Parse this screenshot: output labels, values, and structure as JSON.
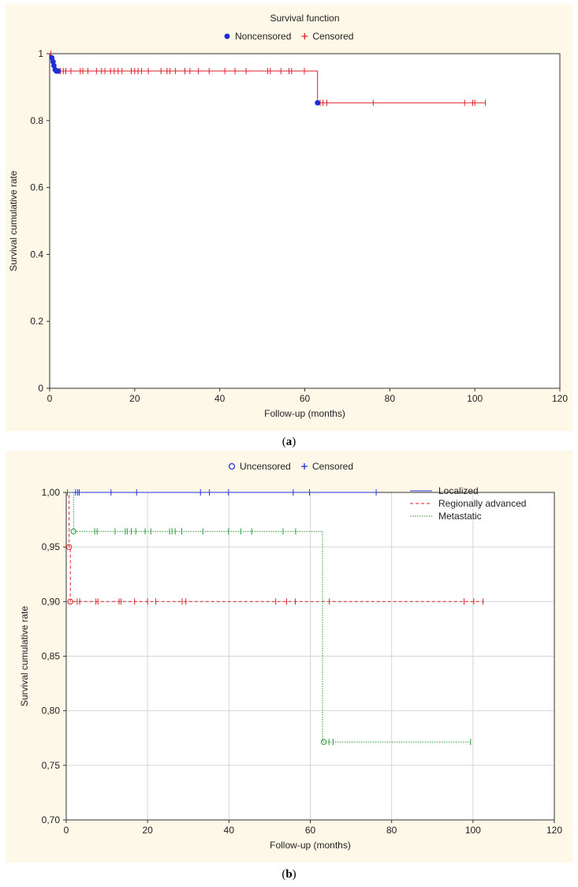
{
  "figure_labels": {
    "a": "a",
    "b": "b"
  },
  "chart_data": [
    {
      "type": "line",
      "title": "Survival function",
      "xlabel": "Follow-up (months)",
      "ylabel": "Survival cumulative rate",
      "xlim": [
        0,
        120
      ],
      "ylim": [
        0,
        1
      ],
      "x_ticks": [
        "0",
        "20",
        "40",
        "60",
        "80",
        "100",
        "120"
      ],
      "y_ticks": [
        "0",
        "0.2",
        "0.4",
        "0.6",
        "0.8",
        "1"
      ],
      "grid": false,
      "legend": {
        "placement": "top",
        "entries": [
          {
            "label": "Noncensored",
            "marker": "filled-circle",
            "color": "#1f2fd6"
          },
          {
            "label": "Censored",
            "marker": "plus",
            "color": "#e0202a"
          }
        ]
      },
      "series": [
        {
          "color": "#e0202a",
          "step": [
            [
              0,
              1.0
            ],
            [
              0.5,
              0.988
            ],
            [
              0.8,
              0.976
            ],
            [
              1.0,
              0.964
            ],
            [
              1.3,
              0.952
            ],
            [
              1.5,
              0.948
            ],
            [
              63.0,
              0.948
            ],
            [
              63.0,
              0.853
            ],
            [
              102.5,
              0.853
            ]
          ],
          "events": [
            [
              0.5,
              0.988
            ],
            [
              0.8,
              0.976
            ],
            [
              1.0,
              0.964
            ],
            [
              1.3,
              0.952
            ],
            [
              1.6,
              0.948
            ],
            [
              2.0,
              0.948
            ],
            [
              63.0,
              0.853
            ]
          ],
          "censored": [
            [
              0.3,
              1.0
            ],
            [
              2.5,
              0.948
            ],
            [
              3.2,
              0.948
            ],
            [
              3.8,
              0.948
            ],
            [
              5.0,
              0.948
            ],
            [
              7.2,
              0.948
            ],
            [
              7.8,
              0.948
            ],
            [
              9.0,
              0.948
            ],
            [
              11.0,
              0.948
            ],
            [
              12.2,
              0.948
            ],
            [
              13.0,
              0.948
            ],
            [
              14.3,
              0.948
            ],
            [
              15.2,
              0.948
            ],
            [
              16.1,
              0.948
            ],
            [
              17.0,
              0.948
            ],
            [
              19.2,
              0.948
            ],
            [
              20.0,
              0.948
            ],
            [
              20.8,
              0.948
            ],
            [
              21.6,
              0.948
            ],
            [
              23.2,
              0.948
            ],
            [
              26.2,
              0.948
            ],
            [
              27.6,
              0.948
            ],
            [
              28.3,
              0.948
            ],
            [
              29.6,
              0.948
            ],
            [
              31.8,
              0.948
            ],
            [
              33.0,
              0.948
            ],
            [
              35.0,
              0.948
            ],
            [
              37.5,
              0.948
            ],
            [
              41.2,
              0.948
            ],
            [
              43.6,
              0.948
            ],
            [
              46.2,
              0.948
            ],
            [
              51.3,
              0.948
            ],
            [
              51.9,
              0.948
            ],
            [
              54.4,
              0.948
            ],
            [
              56.3,
              0.948
            ],
            [
              56.9,
              0.948
            ],
            [
              59.9,
              0.948
            ],
            [
              63.6,
              0.853
            ],
            [
              64.3,
              0.853
            ],
            [
              65.2,
              0.853
            ],
            [
              76.1,
              0.853
            ],
            [
              97.6,
              0.853
            ],
            [
              99.5,
              0.853
            ],
            [
              100.0,
              0.853
            ],
            [
              102.5,
              0.853
            ]
          ]
        }
      ]
    },
    {
      "type": "line",
      "title": "",
      "xlabel": "Follow-up (months)",
      "ylabel": "Survival cumulative rate",
      "xlim": [
        0,
        120
      ],
      "ylim": [
        0.7,
        1.0
      ],
      "x_ticks": [
        "0",
        "20",
        "40",
        "60",
        "80",
        "100",
        "120"
      ],
      "y_ticks": [
        "0,70",
        "0,75",
        "0,80",
        "0,85",
        "0,90",
        "0,95",
        "1,00"
      ],
      "grid": true,
      "legend": {
        "placement": "top",
        "entries": [
          {
            "label": "Uncensored",
            "marker": "open-circle",
            "color": "#1f2fd6"
          },
          {
            "label": "Censored",
            "marker": "plus",
            "color": "#1f2fd6"
          }
        ]
      },
      "series_legend": {
        "placement": "top-right"
      },
      "series": [
        {
          "name": "Localized",
          "color": "#2233dd",
          "dash": "solid",
          "step": [
            [
              0,
              1.0
            ],
            [
              76.2,
              1.0
            ]
          ],
          "events": [],
          "censored": [
            [
              2.3,
              1.0
            ],
            [
              2.8,
              1.0
            ],
            [
              3.2,
              1.0
            ],
            [
              11.0,
              1.0
            ],
            [
              17.3,
              1.0
            ],
            [
              33.0,
              1.0
            ],
            [
              35.2,
              1.0
            ],
            [
              39.9,
              1.0
            ],
            [
              55.8,
              1.0
            ],
            [
              59.8,
              1.0
            ],
            [
              76.2,
              1.0
            ]
          ]
        },
        {
          "name": "Regionally advanced",
          "color": "#e0202a",
          "dash": "4,3",
          "step": [
            [
              0,
              1.0
            ],
            [
              0.7,
              1.0
            ],
            [
              0.7,
              0.95
            ],
            [
              1.0,
              0.95
            ],
            [
              1.0,
              0.9
            ],
            [
              102.5,
              0.9
            ]
          ],
          "events": [
            [
              0.7,
              0.95
            ],
            [
              1.0,
              0.9
            ]
          ],
          "censored": [
            [
              0.3,
              1.0
            ],
            [
              2.7,
              0.9
            ],
            [
              3.3,
              0.9
            ],
            [
              7.3,
              0.9
            ],
            [
              7.8,
              0.9
            ],
            [
              13.0,
              0.9
            ],
            [
              13.5,
              0.9
            ],
            [
              16.8,
              0.9
            ],
            [
              20.0,
              0.9
            ],
            [
              22.0,
              0.9
            ],
            [
              28.5,
              0.9
            ],
            [
              29.4,
              0.9
            ],
            [
              51.5,
              0.9
            ],
            [
              54.2,
              0.9
            ],
            [
              56.3,
              0.9
            ],
            [
              64.7,
              0.9
            ],
            [
              97.8,
              0.9
            ],
            [
              100.2,
              0.9
            ],
            [
              102.5,
              0.9
            ]
          ]
        },
        {
          "name": "Metastatic",
          "color": "#2a9a3a",
          "dash": "1.5,1.5",
          "step": [
            [
              0,
              1.0
            ],
            [
              1.8,
              1.0
            ],
            [
              1.8,
              0.9643
            ],
            [
              63.0,
              0.9643
            ],
            [
              63.0,
              0.7714
            ],
            [
              99.4,
              0.7714
            ]
          ],
          "events": [
            [
              1.8,
              0.9643
            ],
            [
              63.3,
              0.7714
            ]
          ],
          "censored": [
            [
              7.0,
              0.9643
            ],
            [
              7.6,
              0.9643
            ],
            [
              12.0,
              0.9643
            ],
            [
              14.5,
              0.9643
            ],
            [
              15.0,
              0.9643
            ],
            [
              16.0,
              0.9643
            ],
            [
              17.1,
              0.9643
            ],
            [
              19.4,
              0.9643
            ],
            [
              20.8,
              0.9643
            ],
            [
              25.4,
              0.9643
            ],
            [
              26.0,
              0.9643
            ],
            [
              26.8,
              0.9643
            ],
            [
              28.4,
              0.9643
            ],
            [
              33.6,
              0.9643
            ],
            [
              39.9,
              0.9643
            ],
            [
              42.9,
              0.9643
            ],
            [
              45.6,
              0.9643
            ],
            [
              53.3,
              0.9643
            ],
            [
              56.4,
              0.9643
            ],
            [
              64.6,
              0.7714
            ],
            [
              65.6,
              0.7714
            ],
            [
              99.4,
              0.7714
            ]
          ]
        }
      ]
    }
  ]
}
